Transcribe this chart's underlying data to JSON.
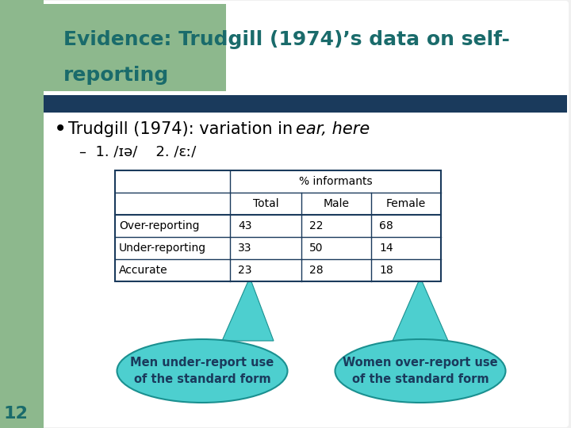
{
  "title_line1": "Evidence: Trudgill (1974)’s data on self-",
  "title_line2": "reporting",
  "title_color": "#1a6b6b",
  "bg_color": "#f0f0f0",
  "slide_bg": "#ffffff",
  "left_bar_color": "#8db88d",
  "blue_bar_color": "#1a3a5c",
  "bullet_normal": "Trudgill (1974): variation in ",
  "bullet_italic": "ear, here",
  "sub_bullet": "–  1. /ɪə/    2. /ɛː/",
  "table_rows": [
    [
      "Over-reporting",
      "43",
      "22",
      "68"
    ],
    [
      "Under-reporting",
      "33",
      "50",
      "14"
    ],
    [
      "Accurate",
      "23",
      "28",
      "18"
    ]
  ],
  "callout1_text": "Men under-report use\nof the standard form",
  "callout2_text": "Women over-report use\nof the standard form",
  "callout_color": "#4dcfcf",
  "callout_border": "#1a9090",
  "arrow_color": "#4dcfcf",
  "page_num": "12",
  "page_num_color": "#1a6b6b",
  "table_border_color": "#1a3a5c"
}
